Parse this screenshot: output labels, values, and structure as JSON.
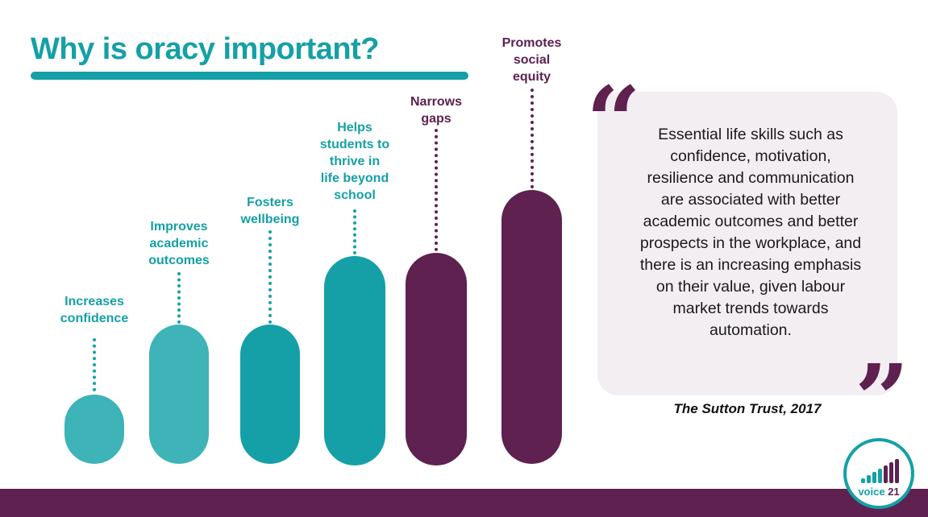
{
  "title": "Why is oracy important?",
  "colors": {
    "teal": "#14a0a6",
    "teal_light": "#3eb3b8",
    "purple": "#5e2150",
    "quote_bg": "#f3eef2"
  },
  "steps": [
    {
      "label": "Increases\nconfidence",
      "color": "#3eb3b8",
      "label_color": "#14a0a6",
      "level": 1
    },
    {
      "label": "Improves\nacademic\noutcomes",
      "color": "#3eb3b8",
      "label_color": "#14a0a6",
      "level": 2
    },
    {
      "label": "Fosters\nwellbeing",
      "color": "#14a0a6",
      "label_color": "#14a0a6",
      "level": 2
    },
    {
      "label": "Helps\nstudents to\nthrive in\nlife beyond\nschool",
      "color": "#14a0a6",
      "label_color": "#14a0a6",
      "level": 3
    },
    {
      "label": "Narrows\ngaps",
      "color": "#5e2150",
      "label_color": "#5e2150",
      "level": 3
    },
    {
      "label": "Promotes\nsocial\nequity",
      "color": "#5e2150",
      "label_color": "#5e2150",
      "level": 4
    }
  ],
  "quote": {
    "open_mark": "“",
    "close_mark": "”",
    "text": "Essential life skills such as confidence, motivation, resilience and communication are associated with better academic outcomes and better prospects in the workplace, and there is an increasing emphasis on their value, given labour market trends towards automation.",
    "attribution": "The Sutton Trust, 2017"
  },
  "logo": {
    "text_voice": "voice",
    "text_num": "21",
    "icon": "signal-bars-icon"
  }
}
